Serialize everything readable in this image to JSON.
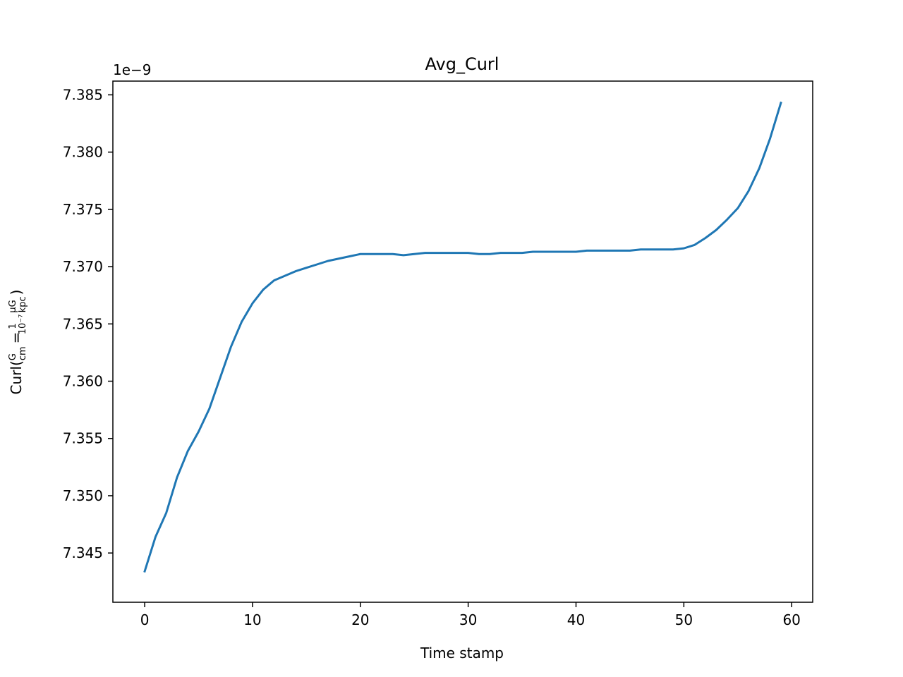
{
  "chart_data": {
    "type": "line",
    "title": "Avg_Curl",
    "xlabel": "Time stamp",
    "ylabel": {
      "prefix": "Curl(",
      "frac1_num": "G",
      "frac1_den": "cm",
      "equals": "=",
      "frac2_num": "1",
      "frac2_den": "10⁻⁷",
      "frac3_num": "μG",
      "frac3_den": "kpc",
      "suffix": ")"
    },
    "y_offset_label": "1e−9",
    "xlim": [
      -2.95,
      61.95
    ],
    "ylim": [
      7.3407,
      7.3862
    ],
    "xticks": [
      0,
      10,
      20,
      30,
      40,
      50,
      60
    ],
    "xtick_labels": [
      "0",
      "10",
      "20",
      "30",
      "40",
      "50",
      "60"
    ],
    "yticks": [
      7.345,
      7.35,
      7.355,
      7.36,
      7.365,
      7.37,
      7.375,
      7.38,
      7.385
    ],
    "ytick_labels": [
      "7.345",
      "7.350",
      "7.355",
      "7.360",
      "7.365",
      "7.370",
      "7.375",
      "7.380",
      "7.385"
    ],
    "grid": false,
    "color": "#1f77b4",
    "series": [
      {
        "x": [
          0,
          1,
          2,
          3,
          4,
          5,
          6,
          7,
          8,
          9,
          10,
          11,
          12,
          13,
          14,
          15,
          16,
          17,
          18,
          19,
          20,
          21,
          22,
          23,
          24,
          25,
          26,
          27,
          28,
          29,
          30,
          31,
          32,
          33,
          34,
          35,
          36,
          37,
          38,
          39,
          40,
          41,
          42,
          43,
          44,
          45,
          46,
          47,
          48,
          49,
          50,
          51,
          52,
          53,
          54,
          55,
          56,
          57,
          58,
          59
        ],
        "values": [
          7.3434,
          7.3464,
          7.3485,
          7.3516,
          7.3539,
          7.3556,
          7.3576,
          7.3603,
          7.363,
          7.3652,
          7.3668,
          7.368,
          7.3688,
          7.3692,
          7.3696,
          7.3699,
          7.3702,
          7.3705,
          7.3707,
          7.3709,
          7.3711,
          7.3711,
          7.3711,
          7.3711,
          7.371,
          7.3711,
          7.3712,
          7.3712,
          7.3712,
          7.3712,
          7.3712,
          7.3711,
          7.3711,
          7.3712,
          7.3712,
          7.3712,
          7.3713,
          7.3713,
          7.3713,
          7.3713,
          7.3713,
          7.3714,
          7.3714,
          7.3714,
          7.3714,
          7.3714,
          7.3715,
          7.3715,
          7.3715,
          7.3715,
          7.3716,
          7.3719,
          7.3725,
          7.3732,
          7.3741,
          7.3751,
          7.3766,
          7.3786,
          7.3812,
          7.3843
        ]
      }
    ]
  }
}
